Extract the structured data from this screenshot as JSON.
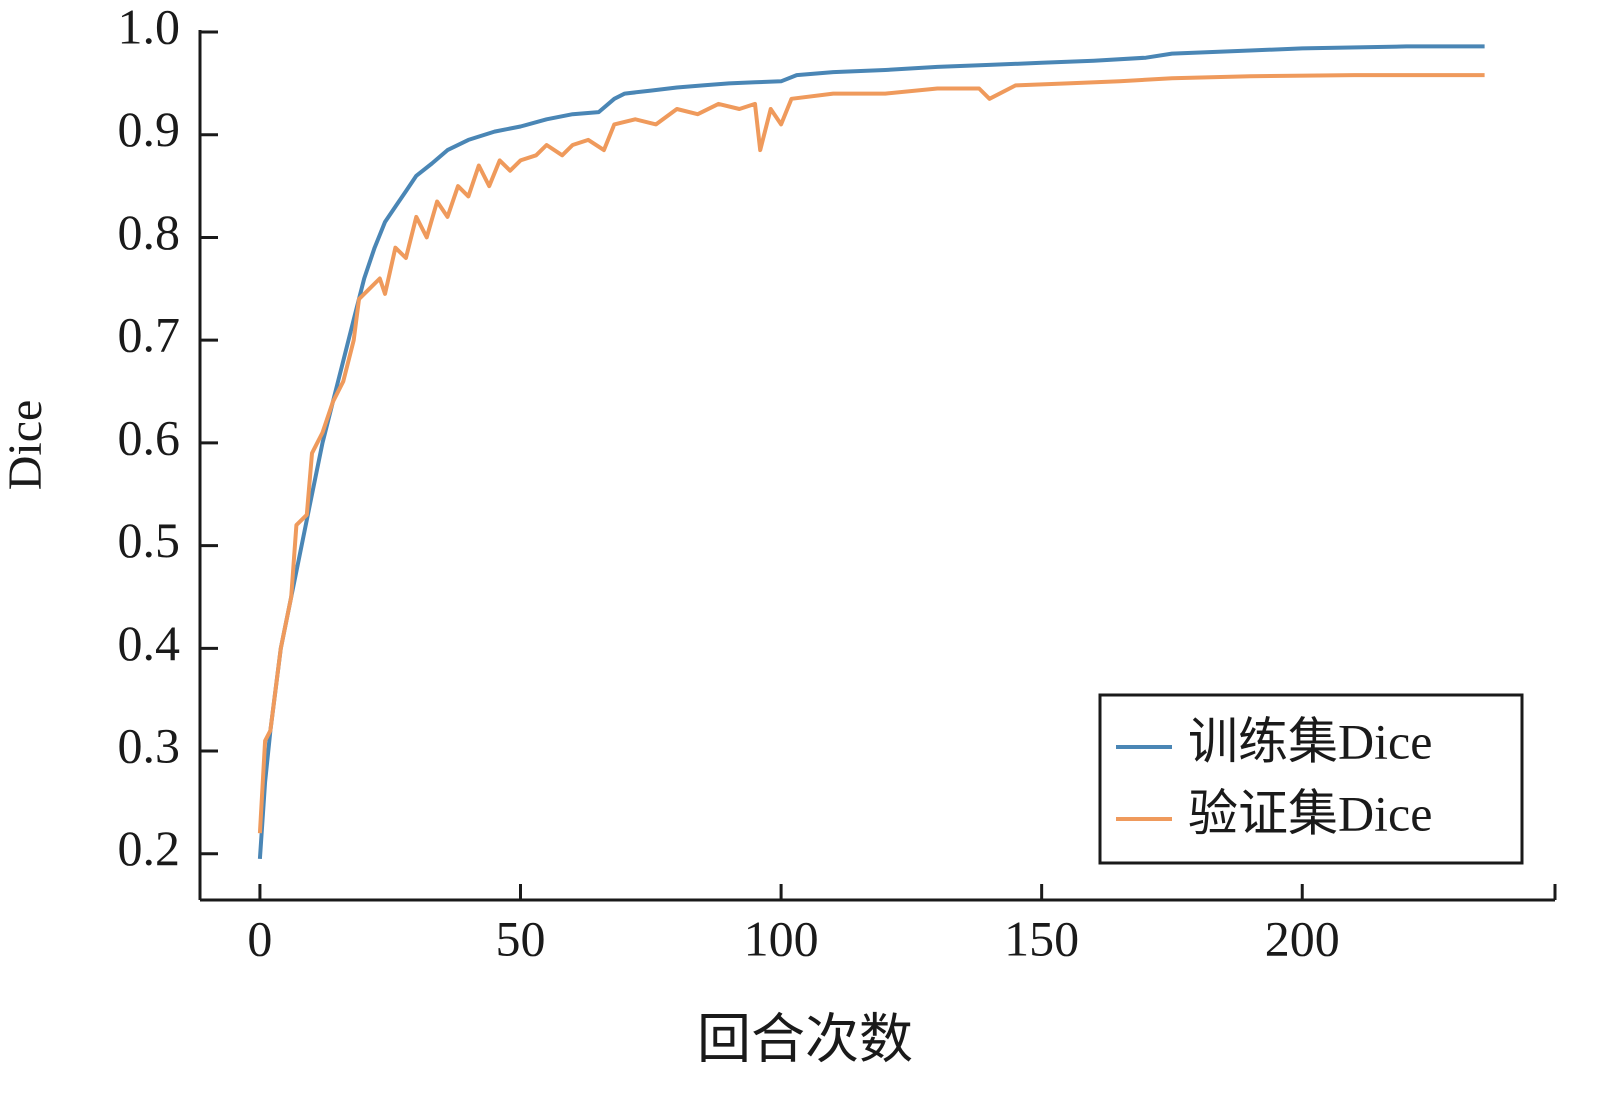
{
  "chart_data": {
    "type": "line",
    "x_label": "回合次数",
    "y_label": "Dice",
    "xlim": [
      -11.5,
      248.5
    ],
    "ylim": [
      0.155,
      1.0
    ],
    "xticks": [
      0,
      50,
      100,
      150,
      200
    ],
    "yticks": [
      0.2,
      0.3,
      0.4,
      0.5,
      0.6,
      0.7,
      0.8,
      0.9,
      {
        "value": 1.0,
        "label": "1.0"
      }
    ],
    "legend": "lower right",
    "series": [
      {
        "name": "训练集Dice",
        "color": "#4a86b5",
        "x": [
          0,
          1,
          2,
          4,
          6,
          8,
          10,
          12,
          14,
          16,
          18,
          20,
          22,
          24,
          26,
          28,
          30,
          33,
          36,
          40,
          45,
          50,
          55,
          60,
          65,
          68,
          70,
          75,
          80,
          85,
          90,
          95,
          100,
          103,
          110,
          120,
          130,
          140,
          150,
          160,
          170,
          175,
          190,
          200,
          220,
          235
        ],
        "values": [
          0.195,
          0.27,
          0.32,
          0.4,
          0.45,
          0.5,
          0.55,
          0.6,
          0.64,
          0.68,
          0.72,
          0.76,
          0.79,
          0.815,
          0.83,
          0.845,
          0.86,
          0.872,
          0.885,
          0.895,
          0.903,
          0.908,
          0.915,
          0.92,
          0.922,
          0.935,
          0.94,
          0.943,
          0.946,
          0.948,
          0.95,
          0.951,
          0.952,
          0.958,
          0.961,
          0.963,
          0.966,
          0.968,
          0.97,
          0.972,
          0.975,
          0.979,
          0.982,
          0.984,
          0.986,
          0.986
        ]
      },
      {
        "name": "验证集Dice",
        "color": "#ef9a5c",
        "x": [
          0,
          1,
          2,
          4,
          6,
          7,
          9,
          10,
          12,
          14,
          16,
          18,
          19,
          21,
          23,
          24,
          26,
          28,
          30,
          32,
          34,
          36,
          38,
          40,
          42,
          44,
          46,
          48,
          50,
          53,
          55,
          58,
          60,
          63,
          66,
          68,
          72,
          76,
          80,
          84,
          88,
          92,
          95,
          96,
          98,
          100,
          102,
          110,
          120,
          130,
          138,
          140,
          145,
          155,
          165,
          175,
          190,
          210,
          235
        ],
        "values": [
          0.22,
          0.31,
          0.32,
          0.4,
          0.45,
          0.52,
          0.53,
          0.59,
          0.61,
          0.64,
          0.66,
          0.7,
          0.74,
          0.75,
          0.76,
          0.745,
          0.79,
          0.78,
          0.82,
          0.8,
          0.835,
          0.82,
          0.85,
          0.84,
          0.87,
          0.85,
          0.875,
          0.865,
          0.875,
          0.88,
          0.89,
          0.88,
          0.89,
          0.895,
          0.885,
          0.91,
          0.915,
          0.91,
          0.925,
          0.92,
          0.93,
          0.925,
          0.93,
          0.885,
          0.925,
          0.91,
          0.935,
          0.94,
          0.94,
          0.945,
          0.945,
          0.935,
          0.948,
          0.95,
          0.952,
          0.955,
          0.957,
          0.958,
          0.958
        ]
      }
    ]
  }
}
